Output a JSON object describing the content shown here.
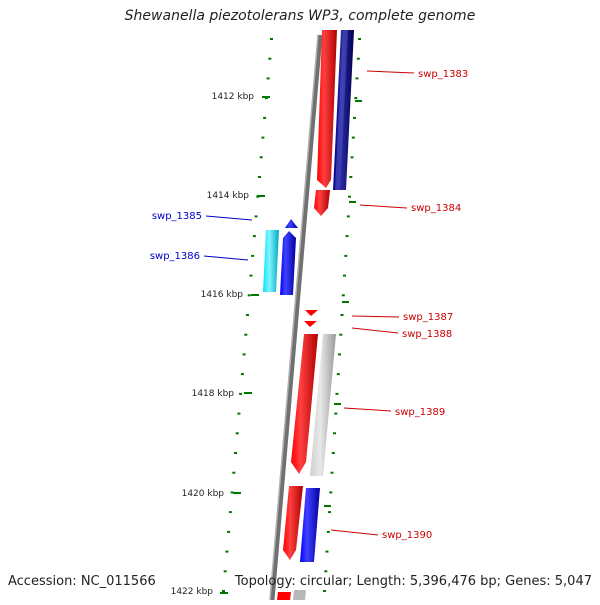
{
  "title": "Shewanella piezotolerans WP3, complete genome",
  "footer": {
    "accession": "Accession: NC_011566",
    "summary": "Topology: circular; Length: 5,396,476 bp; Genes: 5,047"
  },
  "scale_labels": [
    "1412 kbp",
    "1414 kbp",
    "1416 kbp",
    "1418 kbp",
    "1420 kbp",
    "1422 kbp"
  ],
  "genes": [
    {
      "name": "swp_1383",
      "strand": "reverse",
      "color": "#cc0000"
    },
    {
      "name": "swp_1384",
      "strand": "reverse",
      "color": "#cc0000"
    },
    {
      "name": "swp_1385",
      "strand": "forward",
      "color": "#0000cc"
    },
    {
      "name": "swp_1386",
      "strand": "forward",
      "color": "#0000cc"
    },
    {
      "name": "swp_1387",
      "strand": "reverse",
      "color": "#cc0000"
    },
    {
      "name": "swp_1388",
      "strand": "reverse",
      "color": "#cc0000"
    },
    {
      "name": "swp_1389",
      "strand": "reverse",
      "color": "#cc0000"
    },
    {
      "name": "swp_1390",
      "strand": "reverse",
      "color": "#cc0000"
    }
  ],
  "colors": {
    "cds_red": "#ff0000",
    "cds_blue": "#0000ff",
    "cds_cyan": "#00e5ff",
    "cds_navy": "#000080",
    "cds_grey": "#b8b8b8",
    "ruler_green": "#007700",
    "backbone": "#888888"
  }
}
